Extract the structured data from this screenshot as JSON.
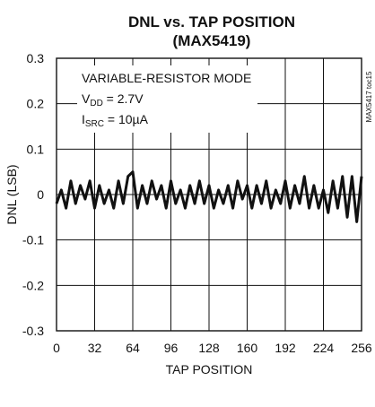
{
  "chart_data": {
    "type": "line",
    "title": "DNL vs. TAP POSITION",
    "subtitle": "(MAX5419)",
    "xlabel": "TAP POSITION",
    "ylabel": "DNL (LSB)",
    "xlim": [
      0,
      256
    ],
    "ylim": [
      -0.3,
      0.3
    ],
    "xticks": [
      0,
      32,
      64,
      96,
      128,
      160,
      192,
      224,
      256
    ],
    "yticks": [
      0.3,
      0.2,
      0.1,
      0,
      -0.1,
      -0.2,
      -0.3
    ],
    "ytick_labels": [
      "0.3",
      "0.2",
      "0.1",
      "0",
      "-0.1",
      "-0.2",
      "-0.3"
    ],
    "grid": true,
    "annotation": {
      "line1": "VARIABLE-RESISTOR MODE",
      "line2_main": "V",
      "line2_sub": "DD",
      "line2_rest": " = 2.7V",
      "line3_main": "I",
      "line3_sub": "SRC",
      "line3_rest": " = 10µA"
    },
    "figure_id": "MAX5417 toc15",
    "series": [
      {
        "color": "#111111",
        "x": [
          0,
          4,
          8,
          12,
          16,
          20,
          24,
          28,
          32,
          36,
          40,
          44,
          48,
          52,
          56,
          60,
          64,
          68,
          72,
          76,
          80,
          84,
          88,
          92,
          96,
          100,
          104,
          108,
          112,
          116,
          120,
          124,
          128,
          132,
          136,
          140,
          144,
          148,
          152,
          156,
          160,
          164,
          168,
          172,
          176,
          180,
          184,
          188,
          192,
          196,
          200,
          204,
          208,
          212,
          216,
          220,
          224,
          228,
          232,
          236,
          240,
          244,
          248,
          252,
          256
        ],
        "y": [
          -0.02,
          0.01,
          -0.03,
          0.03,
          -0.02,
          0.02,
          -0.01,
          0.03,
          -0.03,
          0.02,
          -0.02,
          0.01,
          -0.03,
          0.03,
          -0.02,
          0.04,
          0.05,
          -0.03,
          0.02,
          -0.02,
          0.03,
          -0.01,
          0.02,
          -0.03,
          0.03,
          -0.02,
          0.01,
          -0.03,
          0.02,
          -0.02,
          0.03,
          -0.02,
          0.02,
          -0.03,
          0.01,
          -0.02,
          0.02,
          -0.03,
          0.03,
          -0.01,
          0.02,
          -0.03,
          0.02,
          -0.02,
          0.03,
          -0.03,
          0.01,
          -0.02,
          0.03,
          -0.03,
          0.02,
          -0.02,
          0.04,
          -0.03,
          0.02,
          -0.03,
          0.01,
          -0.04,
          0.03,
          -0.03,
          0.04,
          -0.05,
          0.04,
          -0.06,
          0.04
        ]
      }
    ]
  }
}
